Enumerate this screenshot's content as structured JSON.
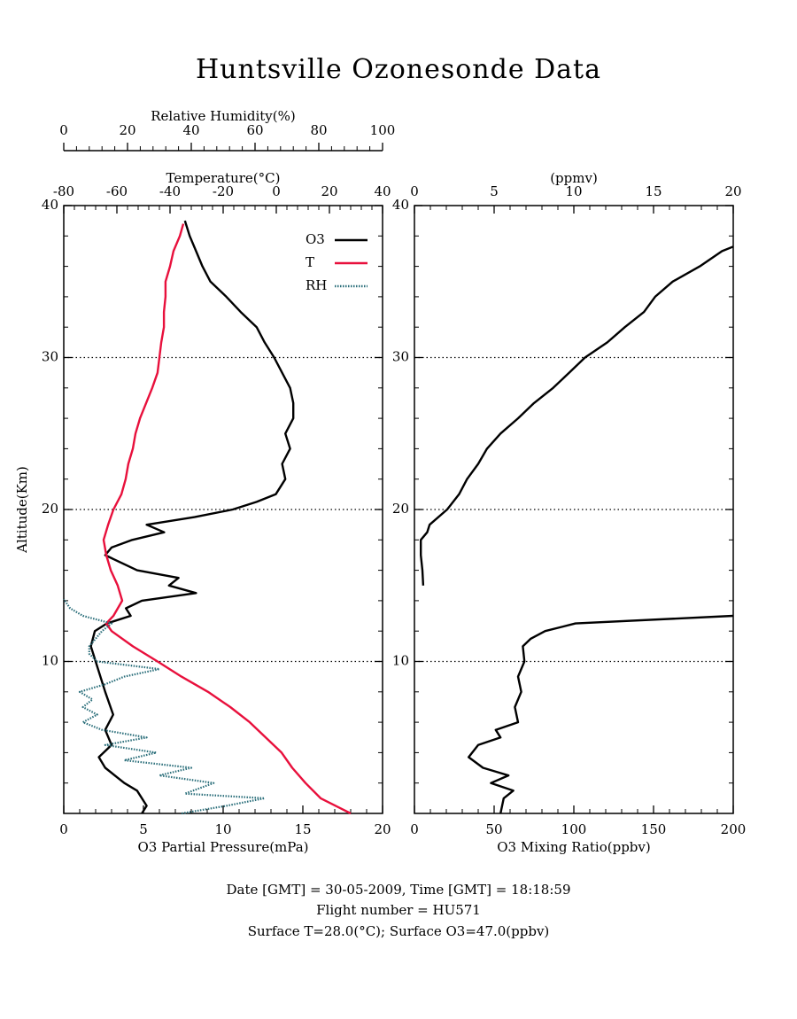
{
  "title": "Huntsville Ozonesonde Data",
  "footer": [
    "Date [GMT] = 30-05-2009,  Time [GMT] = 18:18:59",
    "Flight number = HU571",
    "Surface T=28.0(°C); Surface O3=47.0(ppbv)"
  ],
  "chart_data": [
    {
      "type": "line",
      "ylabel": "Altitude(Km)",
      "ylim": [
        0,
        40
      ],
      "yticks": [
        10,
        20,
        30,
        40
      ],
      "grid": true,
      "xlabel": "O3 Partial Pressure(mPa)",
      "xlim": [
        0,
        20
      ],
      "xticks": [
        0,
        5,
        10,
        15,
        20
      ],
      "x2label": "Temperature(°C)",
      "x2lim": [
        -80,
        40
      ],
      "x2ticks": [
        -80,
        -60,
        -40,
        -20,
        0,
        20,
        40
      ],
      "x3label": "Relative Humidity(%)",
      "x3lim": [
        0,
        100
      ],
      "x3ticks": [
        0,
        20,
        40,
        60,
        80,
        100
      ],
      "legend": "upper right",
      "series": [
        {
          "name": "O3",
          "color": "#000000",
          "axis": "x",
          "style": "solid",
          "altitude": [
            0,
            0.5,
            1.5,
            2,
            3,
            3.7,
            4.5,
            5.5,
            6.5,
            8,
            10,
            11,
            12,
            12.5,
            13,
            13.5,
            14,
            14.5,
            15,
            15.5,
            16,
            17,
            17.5,
            18,
            18.5,
            19,
            19.5,
            20,
            20.5,
            21,
            22,
            23,
            24,
            25,
            26,
            27,
            28,
            29,
            30,
            31,
            32,
            33,
            34,
            35,
            36,
            37,
            38,
            39
          ],
          "values": [
            4.9,
            5.2,
            4.6,
            3.8,
            2.6,
            2.2,
            3.0,
            2.6,
            3.1,
            2.6,
            2.0,
            1.7,
            1.95,
            2.7,
            4.2,
            3.9,
            4.9,
            8.3,
            6.6,
            7.2,
            4.6,
            2.6,
            3.0,
            4.3,
            6.3,
            5.2,
            8.2,
            10.6,
            12.1,
            13.3,
            13.9,
            13.7,
            14.2,
            13.9,
            14.4,
            14.4,
            14.2,
            13.7,
            13.2,
            12.6,
            12.1,
            11.1,
            10.2,
            9.2,
            8.7,
            8.3,
            7.9,
            7.6
          ]
        },
        {
          "name": "T",
          "color": "#e8103c",
          "axis": "x2",
          "style": "solid",
          "altitude": [
            0,
            1,
            2,
            3,
            4,
            5,
            6,
            7,
            8,
            9,
            10,
            11,
            12,
            12.5,
            13,
            14,
            15,
            16,
            17,
            18,
            19,
            20,
            21,
            22,
            23,
            24,
            25,
            26,
            27,
            28,
            29,
            30,
            31,
            32,
            33,
            34,
            35,
            36,
            37,
            38,
            38.8
          ],
          "values": [
            28,
            16.7,
            11,
            6,
            2,
            -4,
            -10,
            -17.3,
            -25.7,
            -35.7,
            -44.7,
            -54,
            -62,
            -64,
            -61.3,
            -58,
            -59.7,
            -62.3,
            -64,
            -65,
            -63.3,
            -61.3,
            -58.3,
            -56.7,
            -55.7,
            -54,
            -53,
            -51.3,
            -49,
            -46.7,
            -44.7,
            -44,
            -43.3,
            -42.3,
            -42.3,
            -41.7,
            -41.7,
            -40,
            -38.7,
            -36.3,
            -35
          ]
        },
        {
          "name": "RH",
          "color": "#2a6e7a",
          "axis": "x3",
          "style": "dotted",
          "altitude": [
            0,
            0.5,
            1,
            1.3,
            2,
            2.5,
            3,
            3.5,
            4,
            4.5,
            5,
            5.5,
            6,
            6.5,
            7,
            7.5,
            8,
            8.5,
            9,
            9.5,
            10,
            10.5,
            11,
            12,
            12.5,
            13,
            13.5,
            14.1
          ],
          "values": [
            37,
            51,
            63,
            38,
            47,
            30,
            40,
            19,
            29,
            13,
            26,
            12,
            6,
            10.5,
            6,
            9,
            5,
            13,
            19,
            30,
            10.5,
            8,
            8,
            12,
            15,
            6,
            2,
            0
          ]
        }
      ]
    },
    {
      "type": "line",
      "ylim": [
        0,
        40
      ],
      "yticks": [
        10,
        20,
        30,
        40
      ],
      "grid": true,
      "xlabel": "O3 Mixing Ratio(ppbv)",
      "xlim": [
        0,
        200
      ],
      "xticks": [
        0,
        50,
        100,
        150,
        200
      ],
      "x2label": "(ppmv)",
      "x2lim": [
        0,
        20
      ],
      "x2ticks": [
        0,
        5,
        10,
        15,
        20
      ],
      "series": [
        {
          "color": "#000000",
          "axis": "x",
          "style": "solid",
          "altitude": [
            0,
            1,
            1.5,
            2,
            2.5,
            3,
            3.7,
            4.5,
            5,
            5.5,
            6,
            7,
            8,
            9,
            10,
            11,
            11.5,
            12,
            12.5,
            13
          ],
          "values": [
            54,
            56,
            62,
            48,
            59,
            43,
            34,
            40,
            54,
            51,
            65,
            63,
            67,
            65,
            69,
            68,
            73,
            82,
            101,
            200
          ]
        },
        {
          "color": "#000000",
          "axis": "x2",
          "style": "solid",
          "altitude": [
            15,
            16,
            17,
            18,
            18.5,
            19,
            20,
            21,
            22,
            23,
            24,
            25,
            26,
            27,
            28,
            29,
            30,
            31,
            32,
            33,
            34,
            35,
            36,
            37,
            37.3
          ],
          "values": [
            0.55,
            0.5,
            0.4,
            0.4,
            0.8,
            0.95,
            2.05,
            2.8,
            3.3,
            4.0,
            4.55,
            5.4,
            6.5,
            7.5,
            8.7,
            9.7,
            10.7,
            12.1,
            13.2,
            14.4,
            15.1,
            16.2,
            17.9,
            19.3,
            20
          ]
        }
      ]
    }
  ]
}
